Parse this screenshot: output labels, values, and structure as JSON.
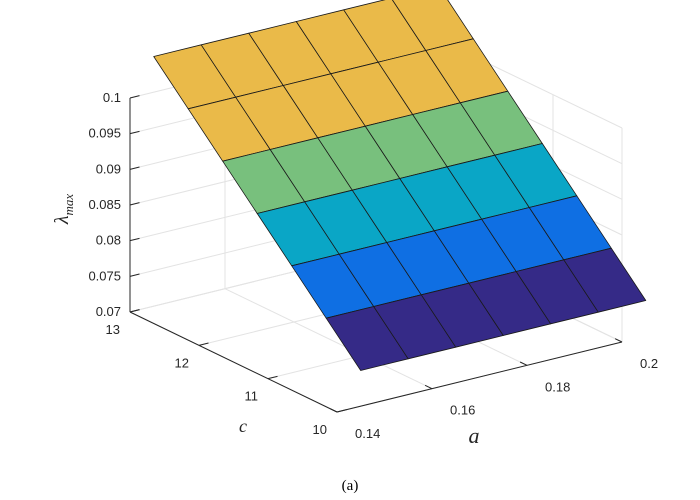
{
  "caption": "(a)",
  "chart_data": {
    "type": "surface",
    "title": "",
    "xlabel": "a",
    "ylabel": "c",
    "zlabel": "λ_max",
    "xlim": [
      0.14,
      0.2
    ],
    "ylim": [
      10,
      13
    ],
    "zlim": [
      0.07,
      0.1
    ],
    "x_ticks": [
      0.14,
      0.16,
      0.18,
      0.2
    ],
    "x_tick_labels": [
      "0.14",
      "0.16",
      "0.18",
      "0.2"
    ],
    "y_ticks": [
      10,
      11,
      12,
      13
    ],
    "y_tick_labels": [
      "10",
      "11",
      "12",
      "13"
    ],
    "z_ticks": [
      0.07,
      0.075,
      0.08,
      0.085,
      0.09,
      0.095,
      0.1
    ],
    "z_tick_labels": [
      "0.07",
      "0.075",
      "0.08",
      "0.085",
      "0.09",
      "0.095",
      "0.1"
    ],
    "grid": true,
    "x": [
      0.15,
      0.16,
      0.17,
      0.18,
      0.19,
      0.2
    ],
    "y": [
      10.25,
      10.75,
      11.25,
      11.75,
      12.25,
      12.75
    ],
    "z": [
      [
        0.075,
        0.075,
        0.075,
        0.075,
        0.075,
        0.075
      ],
      [
        0.08,
        0.08,
        0.08,
        0.08,
        0.08,
        0.08
      ],
      [
        0.085,
        0.085,
        0.085,
        0.085,
        0.085,
        0.085
      ],
      [
        0.09,
        0.09,
        0.09,
        0.09,
        0.09,
        0.09
      ],
      [
        0.095,
        0.095,
        0.095,
        0.095,
        0.095,
        0.095
      ],
      [
        0.1,
        0.1,
        0.1,
        0.1,
        0.1,
        0.1
      ]
    ],
    "colormap": [
      "#352a87",
      "#0f6fe3",
      "#0aa6c6",
      "#78c07d",
      "#eaba49"
    ]
  }
}
